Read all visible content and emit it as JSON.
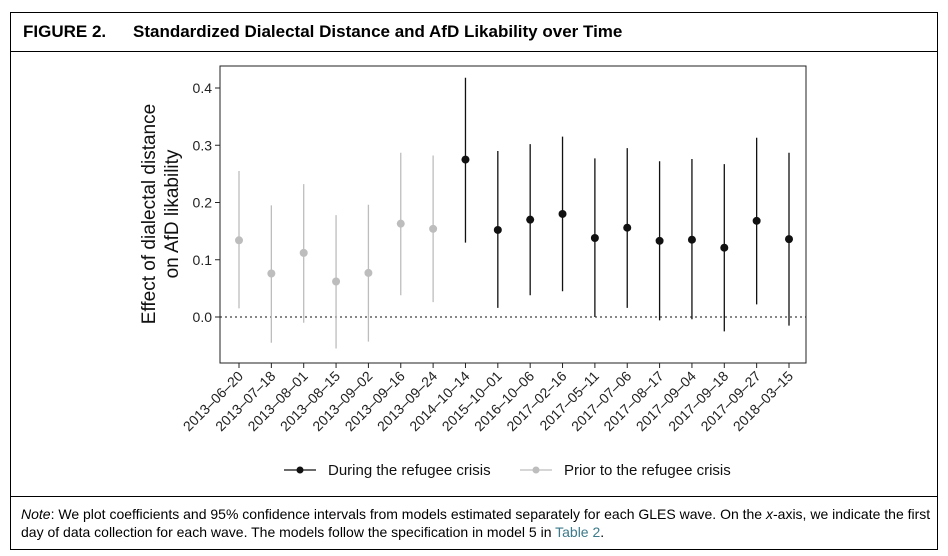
{
  "figure": {
    "label": "FIGURE 2.",
    "title": "Standardized Dialectal Distance and AfD Likability over Time"
  },
  "note": {
    "prefix": "Note",
    "part1": ": We plot coefficients and 95% confidence intervals from models estimated separately for each GLES wave. On the ",
    "xaxis": "x",
    "part2": "-axis, we indicate the first day of data collection for each wave. The models follow the specification in model 5 in ",
    "link": "Table 2",
    "part3": "."
  },
  "colors": {
    "during": "#111111",
    "prior": "#bdbdbd",
    "axis": "#222222"
  },
  "chart_data": {
    "type": "scatter",
    "subtype": "coefficient plot with 95% confidence intervals",
    "title": "Standardized Dialectal Distance and AfD Likability over Time",
    "ylabel_lines": [
      "Effect of dialectal distance",
      "on AfD likability"
    ],
    "xlabel": "",
    "ylim": [
      -0.07,
      0.44
    ],
    "yticks": [
      0.0,
      0.1,
      0.2,
      0.3,
      0.4
    ],
    "ytick_labels": [
      "0.0",
      "0.1",
      "0.2",
      "0.3",
      "0.4"
    ],
    "reference_line": {
      "y": 0.0,
      "style": "dotted"
    },
    "grid": false,
    "legend_position": "bottom",
    "categories": [
      "2013-06-20",
      "2013-07-18",
      "2013-08-01",
      "2013-08-15",
      "2013-09-02",
      "2013-09-16",
      "2013-09-24",
      "2014-10-14",
      "2015-10-01",
      "2016-10-06",
      "2017-02-16",
      "2017-05-11",
      "2017-07-06",
      "2017-08-17",
      "2017-09-04",
      "2017-09-18",
      "2017-09-27",
      "2018-03-15"
    ],
    "category_labels": [
      "2013–06–20",
      "2013–07–18",
      "2013–08–01",
      "2013–08–15",
      "2013–09–02",
      "2013–09–16",
      "2013–09–24",
      "2014–10–14",
      "2015–10–01",
      "2016–10–06",
      "2017–02–16",
      "2017–05–11",
      "2017–07–06",
      "2017–08–17",
      "2017–09–04",
      "2017–09–18",
      "2017–09–27",
      "2018–03–15"
    ],
    "series": [
      {
        "name": "During the refugee crisis",
        "color": "#111111",
        "points": [
          {
            "x": "2014-10-14",
            "y": 0.275,
            "lo": 0.13,
            "hi": 0.418
          },
          {
            "x": "2015-10-01",
            "y": 0.152,
            "lo": 0.016,
            "hi": 0.29
          },
          {
            "x": "2016-10-06",
            "y": 0.17,
            "lo": 0.038,
            "hi": 0.302
          },
          {
            "x": "2017-02-16",
            "y": 0.18,
            "lo": 0.045,
            "hi": 0.315
          },
          {
            "x": "2017-05-11",
            "y": 0.138,
            "lo": 0.0,
            "hi": 0.277
          },
          {
            "x": "2017-07-06",
            "y": 0.156,
            "lo": 0.016,
            "hi": 0.295
          },
          {
            "x": "2017-08-17",
            "y": 0.133,
            "lo": -0.006,
            "hi": 0.272
          },
          {
            "x": "2017-09-04",
            "y": 0.135,
            "lo": -0.004,
            "hi": 0.276
          },
          {
            "x": "2017-09-18",
            "y": 0.121,
            "lo": -0.025,
            "hi": 0.267
          },
          {
            "x": "2017-09-27",
            "y": 0.168,
            "lo": 0.022,
            "hi": 0.313
          },
          {
            "x": "2018-03-15",
            "y": 0.136,
            "lo": -0.015,
            "hi": 0.287
          }
        ]
      },
      {
        "name": "Prior to the refugee crisis",
        "color": "#bdbdbd",
        "points": [
          {
            "x": "2013-06-20",
            "y": 0.134,
            "lo": 0.015,
            "hi": 0.255
          },
          {
            "x": "2013-07-18",
            "y": 0.076,
            "lo": -0.045,
            "hi": 0.195
          },
          {
            "x": "2013-08-01",
            "y": 0.112,
            "lo": -0.01,
            "hi": 0.232
          },
          {
            "x": "2013-08-15",
            "y": 0.062,
            "lo": -0.055,
            "hi": 0.178
          },
          {
            "x": "2013-09-02",
            "y": 0.077,
            "lo": -0.043,
            "hi": 0.196
          },
          {
            "x": "2013-09-16",
            "y": 0.163,
            "lo": 0.038,
            "hi": 0.287
          },
          {
            "x": "2013-09-24",
            "y": 0.154,
            "lo": 0.026,
            "hi": 0.282
          }
        ]
      }
    ]
  }
}
